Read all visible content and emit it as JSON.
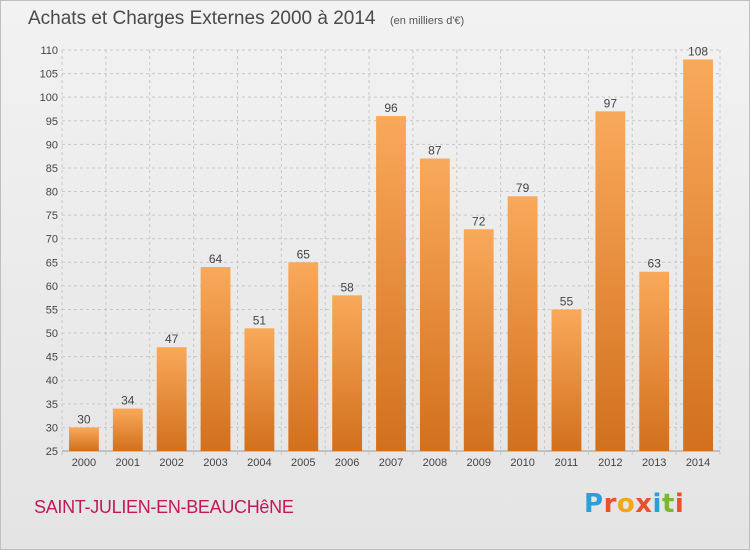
{
  "header": {
    "title": "Achats et Charges Externes 2000 à 2014",
    "unit": "(en milliers d'€)"
  },
  "footer": {
    "commune": "SAINT-JULIEN-EN-BEAUCHêNE",
    "logo_text": "Proxiti",
    "logo_colors": [
      "#2a9fd8",
      "#e8512a",
      "#f2a71b",
      "#e8512a",
      "#2a9fd8",
      "#7cb82f",
      "#e8512a"
    ]
  },
  "colors": {
    "bar_light": "#f9a95a",
    "bar_dark": "#d2701d",
    "grid": "#c8c8c8",
    "axis_text": "#444444"
  },
  "chart_data": {
    "type": "bar",
    "categories": [
      "2000",
      "2001",
      "2002",
      "2003",
      "2004",
      "2005",
      "2006",
      "2007",
      "2008",
      "2009",
      "2010",
      "2011",
      "2012",
      "2013",
      "2014"
    ],
    "values": [
      30,
      34,
      47,
      64,
      51,
      65,
      58,
      96,
      87,
      72,
      79,
      55,
      97,
      63,
      108
    ],
    "title": "Achats et Charges Externes 2000 à 2014",
    "ylim": [
      25,
      110
    ],
    "yticks": [
      25,
      30,
      35,
      40,
      45,
      50,
      55,
      60,
      65,
      70,
      75,
      80,
      85,
      90,
      95,
      100,
      105,
      110
    ],
    "grid": true,
    "legend": "none"
  }
}
